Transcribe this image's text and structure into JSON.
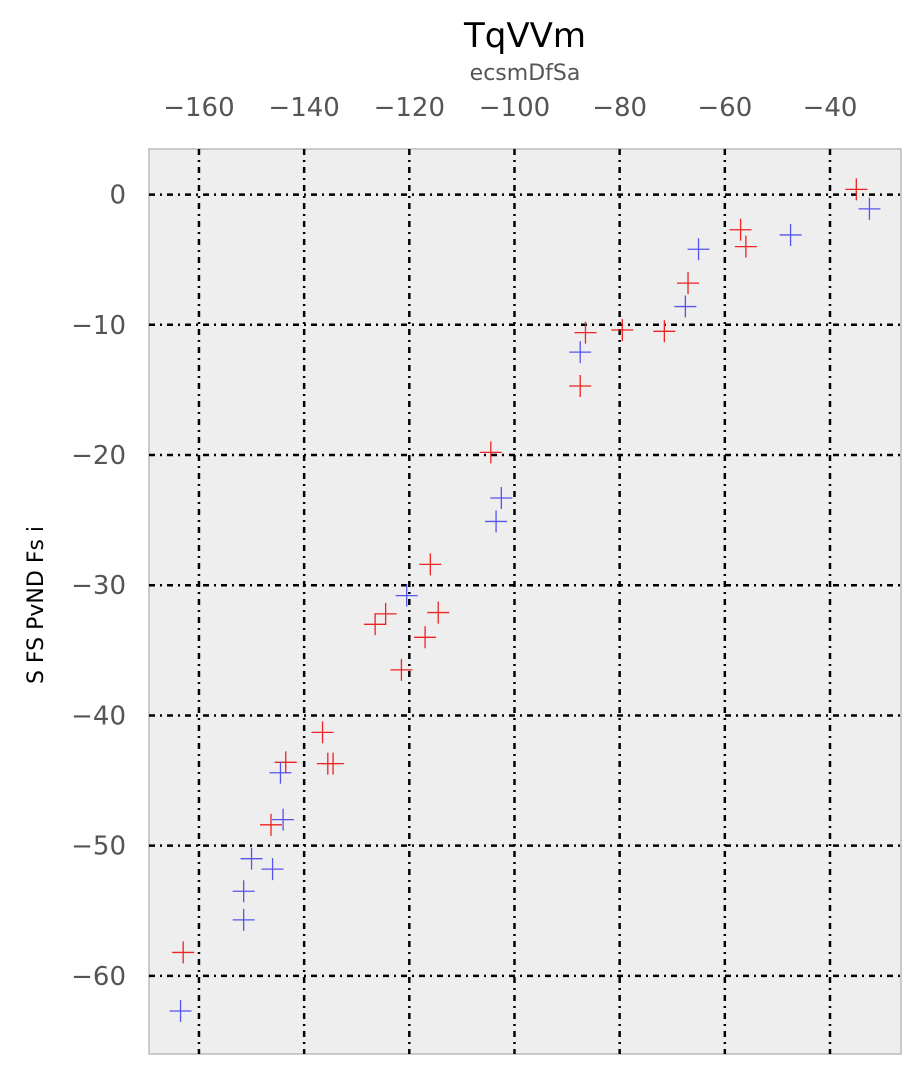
{
  "chart_data": {
    "type": "scatter",
    "title": "TqVVm",
    "subtitle": "ecsmDfSa",
    "xlabel": "",
    "ylabel": "S FS PvND Fs i",
    "xlim": [
      -169.5,
      -26.5
    ],
    "ylim": [
      -66,
      3.5
    ],
    "x_axis_position": "top",
    "x_ticks": [
      -160,
      -140,
      -120,
      -100,
      -80,
      -60,
      -40
    ],
    "x_tick_labels": [
      "−160",
      "−140",
      "−120",
      "−100",
      "−80",
      "−60",
      "−40"
    ],
    "y_ticks": [
      0,
      -10,
      -20,
      -30,
      -40,
      -50,
      -60
    ],
    "y_tick_labels": [
      "0",
      "−10",
      "−20",
      "−30",
      "−40",
      "−50",
      "−60"
    ],
    "grid": true,
    "grid_style": "dash-dot",
    "marker": "plus",
    "background_color": "#eeeeee",
    "series": [
      {
        "color": "#ee2222",
        "points": [
          [
            -163,
            -58.2
          ],
          [
            -146.3,
            -48.4
          ],
          [
            -143.5,
            -43.6
          ],
          [
            -136.5,
            -41.3
          ],
          [
            -135.5,
            -43.7
          ],
          [
            -134.5,
            -43.7
          ],
          [
            -126.5,
            -33
          ],
          [
            -124.5,
            -32.2
          ],
          [
            -121.5,
            -36.5
          ],
          [
            -117,
            -34
          ],
          [
            -116,
            -28.4
          ],
          [
            -114.5,
            -32.1
          ],
          [
            -104.5,
            -19.8
          ],
          [
            -87.5,
            -14.7
          ],
          [
            -86.5,
            -10.6
          ],
          [
            -79.5,
            -10.4
          ],
          [
            -71.5,
            -10.5
          ],
          [
            -67,
            -6.8
          ],
          [
            -57,
            -2.7
          ],
          [
            -56,
            -4
          ],
          [
            -35,
            0.4
          ]
        ]
      },
      {
        "color": "#5555ee",
        "points": [
          [
            -163.5,
            -62.7
          ],
          [
            -151.5,
            -55.7
          ],
          [
            -151.5,
            -53.5
          ],
          [
            -150,
            -51
          ],
          [
            -146,
            -51.8
          ],
          [
            -144,
            -48
          ],
          [
            -144.5,
            -44.4
          ],
          [
            -120.5,
            -30.8
          ],
          [
            -103.5,
            -25.1
          ],
          [
            -102.5,
            -23.3
          ],
          [
            -87.5,
            -12.1
          ],
          [
            -67.5,
            -8.6
          ],
          [
            -65,
            -4.2
          ],
          [
            -47.5,
            -3.1
          ],
          [
            -32.5,
            -1.1
          ]
        ]
      }
    ]
  }
}
